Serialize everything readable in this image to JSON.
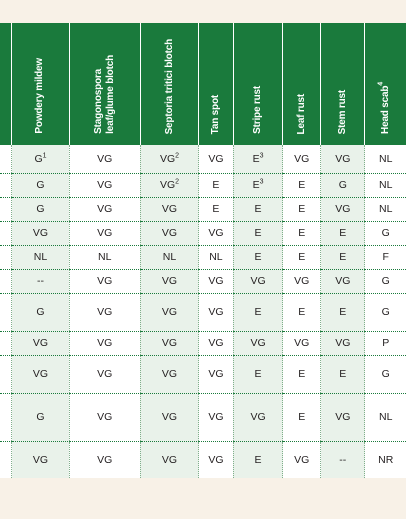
{
  "headers": [
    {
      "label": "Powdery mildew",
      "sup": ""
    },
    {
      "label": "Stagonospora\nleaf/glume blotch",
      "sup": ""
    },
    {
      "label": "Septoria tritici blotch",
      "sup": ""
    },
    {
      "label": "Tan spot",
      "sup": ""
    },
    {
      "label": "Stripe rust",
      "sup": ""
    },
    {
      "label": "Leaf rust",
      "sup": ""
    },
    {
      "label": "Stem rust",
      "sup": ""
    },
    {
      "label": "Head scab",
      "sup": "4"
    }
  ],
  "rows": [
    {
      "cells": [
        {
          "v": "G",
          "s": "1"
        },
        {
          "v": "VG",
          "s": ""
        },
        {
          "v": "VG",
          "s": "2"
        },
        {
          "v": "VG",
          "s": ""
        },
        {
          "v": "E",
          "s": "3"
        },
        {
          "v": "VG",
          "s": ""
        },
        {
          "v": "VG",
          "s": ""
        },
        {
          "v": "NL",
          "s": ""
        }
      ]
    },
    {
      "cells": [
        {
          "v": "G",
          "s": ""
        },
        {
          "v": "VG",
          "s": ""
        },
        {
          "v": "VG",
          "s": "2"
        },
        {
          "v": "E",
          "s": ""
        },
        {
          "v": "E",
          "s": "3"
        },
        {
          "v": "E",
          "s": ""
        },
        {
          "v": "G",
          "s": ""
        },
        {
          "v": "NL",
          "s": ""
        }
      ]
    },
    {
      "cells": [
        {
          "v": "G",
          "s": ""
        },
        {
          "v": "VG",
          "s": ""
        },
        {
          "v": "VG",
          "s": ""
        },
        {
          "v": "E",
          "s": ""
        },
        {
          "v": "E",
          "s": ""
        },
        {
          "v": "E",
          "s": ""
        },
        {
          "v": "VG",
          "s": ""
        },
        {
          "v": "NL",
          "s": ""
        }
      ]
    },
    {
      "cells": [
        {
          "v": "VG",
          "s": ""
        },
        {
          "v": "VG",
          "s": ""
        },
        {
          "v": "VG",
          "s": ""
        },
        {
          "v": "VG",
          "s": ""
        },
        {
          "v": "E",
          "s": ""
        },
        {
          "v": "E",
          "s": ""
        },
        {
          "v": "E",
          "s": ""
        },
        {
          "v": "G",
          "s": ""
        }
      ]
    },
    {
      "cells": [
        {
          "v": "NL",
          "s": ""
        },
        {
          "v": "NL",
          "s": ""
        },
        {
          "v": "NL",
          "s": ""
        },
        {
          "v": "NL",
          "s": ""
        },
        {
          "v": "E",
          "s": ""
        },
        {
          "v": "E",
          "s": ""
        },
        {
          "v": "E",
          "s": ""
        },
        {
          "v": "F",
          "s": ""
        }
      ]
    },
    {
      "cells": [
        {
          "v": "--",
          "s": ""
        },
        {
          "v": "VG",
          "s": ""
        },
        {
          "v": "VG",
          "s": ""
        },
        {
          "v": "VG",
          "s": ""
        },
        {
          "v": "VG",
          "s": ""
        },
        {
          "v": "VG",
          "s": ""
        },
        {
          "v": "VG",
          "s": ""
        },
        {
          "v": "G",
          "s": ""
        }
      ]
    },
    {
      "cells": [
        {
          "v": "G",
          "s": ""
        },
        {
          "v": "VG",
          "s": ""
        },
        {
          "v": "VG",
          "s": ""
        },
        {
          "v": "VG",
          "s": ""
        },
        {
          "v": "E",
          "s": ""
        },
        {
          "v": "E",
          "s": ""
        },
        {
          "v": "E",
          "s": ""
        },
        {
          "v": "G",
          "s": ""
        }
      ]
    },
    {
      "cells": [
        {
          "v": "VG",
          "s": ""
        },
        {
          "v": "VG",
          "s": ""
        },
        {
          "v": "VG",
          "s": ""
        },
        {
          "v": "VG",
          "s": ""
        },
        {
          "v": "VG",
          "s": ""
        },
        {
          "v": "VG",
          "s": ""
        },
        {
          "v": "VG",
          "s": ""
        },
        {
          "v": "P",
          "s": ""
        }
      ]
    },
    {
      "cells": [
        {
          "v": "VG",
          "s": ""
        },
        {
          "v": "VG",
          "s": ""
        },
        {
          "v": "VG",
          "s": ""
        },
        {
          "v": "VG",
          "s": ""
        },
        {
          "v": "E",
          "s": ""
        },
        {
          "v": "E",
          "s": ""
        },
        {
          "v": "E",
          "s": ""
        },
        {
          "v": "G",
          "s": ""
        }
      ]
    },
    {
      "cells": [
        {
          "v": "G",
          "s": ""
        },
        {
          "v": "VG",
          "s": ""
        },
        {
          "v": "VG",
          "s": ""
        },
        {
          "v": "VG",
          "s": ""
        },
        {
          "v": "VG",
          "s": ""
        },
        {
          "v": "E",
          "s": ""
        },
        {
          "v": "VG",
          "s": ""
        },
        {
          "v": "NL",
          "s": ""
        }
      ]
    },
    {
      "cells": [
        {
          "v": "VG",
          "s": ""
        },
        {
          "v": "VG",
          "s": ""
        },
        {
          "v": "VG",
          "s": ""
        },
        {
          "v": "VG",
          "s": ""
        },
        {
          "v": "E",
          "s": ""
        },
        {
          "v": "VG",
          "s": ""
        },
        {
          "v": "--",
          "s": ""
        },
        {
          "v": "NR",
          "s": ""
        }
      ]
    }
  ],
  "colors": {
    "header_green": "#1a7a3c",
    "alt_column_shade": "#e9f2ea",
    "page_background": "#f8f1e7",
    "text": "#231f20"
  }
}
